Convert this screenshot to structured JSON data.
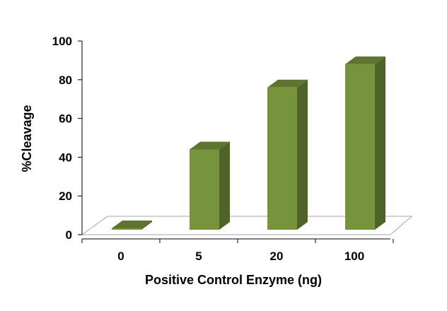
{
  "chart_data": {
    "type": "bar",
    "style": "3d-column",
    "categories": [
      "0",
      "5",
      "20",
      "100"
    ],
    "values": [
      0,
      44,
      76,
      88
    ],
    "xlabel": "Positive Control Enzyme (ng)",
    "ylabel": "%Cleavage",
    "ylim": [
      0,
      100
    ],
    "yticks": [
      "0",
      "20",
      "40",
      "60",
      "80",
      "100"
    ],
    "grid": false,
    "legend": "none",
    "colors": {
      "bar_front": "#77933C",
      "bar_side": "#4F6228",
      "bar_top": "#5E7530",
      "floor": "#A6A6A6"
    }
  }
}
